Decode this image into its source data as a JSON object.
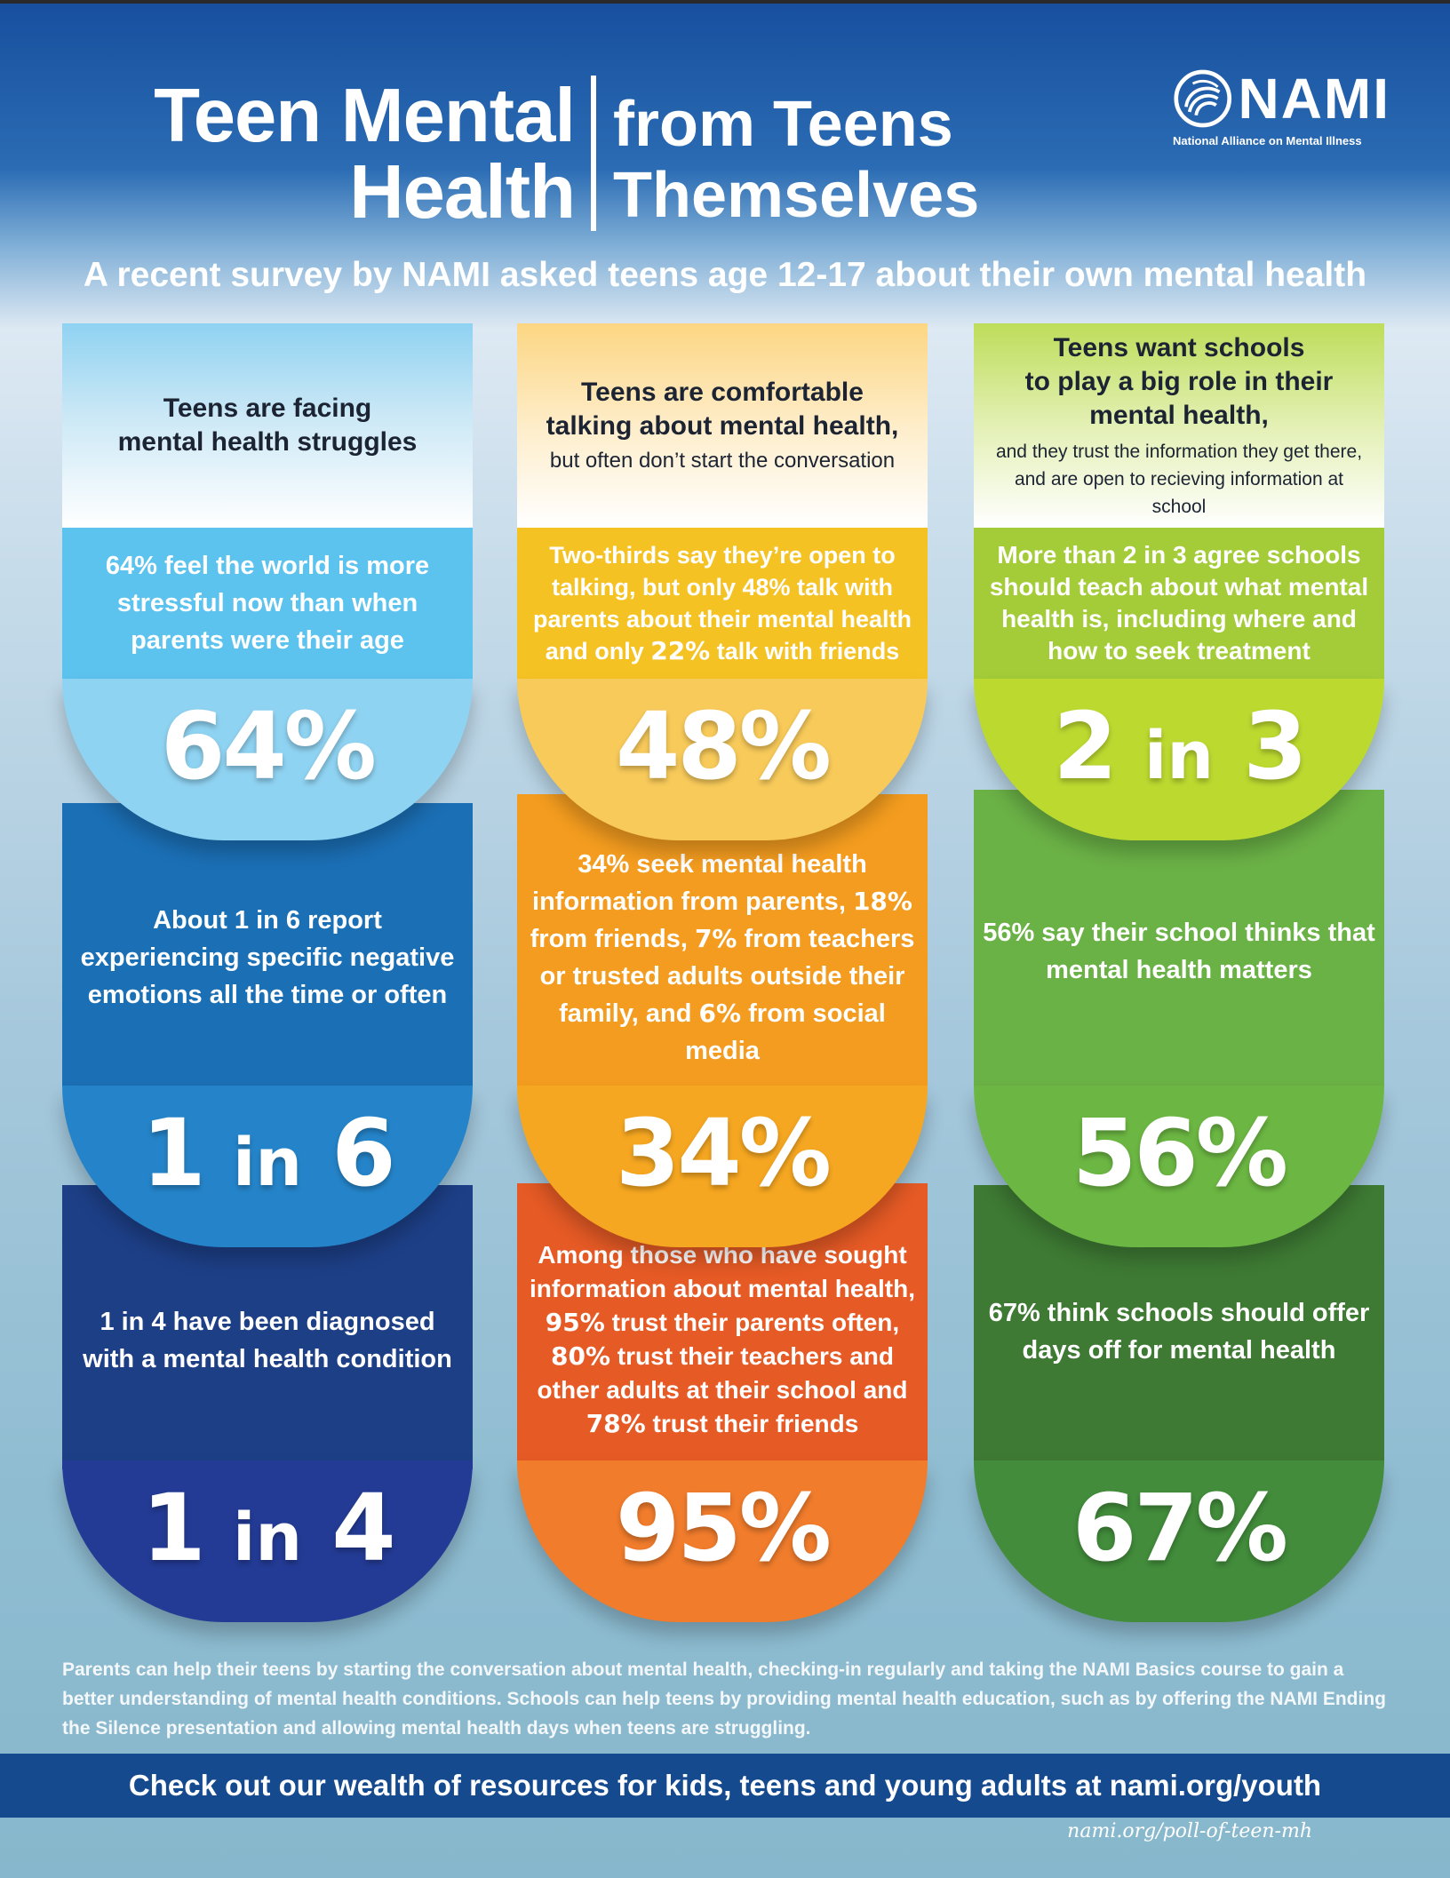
{
  "header": {
    "title_left_line1": "Teen Mental",
    "title_left_line2": "Health",
    "title_right_line1": "from Teens",
    "title_right_line2": "Themselves",
    "subtitle": "A recent survey by NAMI asked teens age 12-17 about their own mental health"
  },
  "logo": {
    "wordmark": "NAMI",
    "tagline": "National Alliance on Mental Illness"
  },
  "columns": [
    {
      "header": {
        "title_line1": "Teens are facing",
        "title_line2": "mental health struggles"
      },
      "stats": [
        {
          "text": "64% feel the world is more stressful now than when parents were their age",
          "value": "64%"
        },
        {
          "text": "About 1 in 6 report experiencing specific negative emotions all the time or often",
          "value_num": "1",
          "value_in": "in",
          "value_den": "6"
        },
        {
          "text": "1 in 4 have been diagnosed with a mental health condition",
          "value_num": "1",
          "value_in": "in",
          "value_den": "4"
        }
      ]
    },
    {
      "header": {
        "title_line1": "Teens are comfortable",
        "title_line2": "talking about mental health,",
        "subtitle": "but often don’t start the conversation"
      },
      "stats": [
        {
          "text_a": "Two-thirds say they’re open to talking, but only 48% talk  with parents about their mental health and only ",
          "hl_1": "22%",
          "text_b": " talk with friends",
          "value": "48%"
        },
        {
          "text_a": "34% seek mental health information from parents, ",
          "hl_1": "18%",
          "text_b": " from friends, ",
          "hl_2": "7%",
          "text_c": " from teachers or trusted adults outside their family, and ",
          "hl_3": "6%",
          "text_d": " from social media",
          "value": "34%"
        },
        {
          "text_a": "Among those who have sought information about mental health, ",
          "hl_1": "95%",
          "text_b": " trust their parents often, ",
          "hl_2": "80%",
          "text_c": " trust their teachers and other adults at their school and ",
          "hl_3": "78%",
          "text_d": " trust their friends",
          "value": "95%"
        }
      ]
    },
    {
      "header": {
        "title_line1": "Teens want schools",
        "title_line2": "to play a big role in their",
        "title_line3": "mental health,",
        "note": "and they trust the information they get there, and are open to recieving information at school"
      },
      "stats": [
        {
          "text": "More than 2 in 3 agree schools should teach about what mental health is, including where and how to seek treatment",
          "value_num": "2",
          "value_in": "in",
          "value_den": "3"
        },
        {
          "text": "56% say their school thinks that mental health matters",
          "value": "56%"
        },
        {
          "text": "67% think schools should offer days off for mental health",
          "value": "67%"
        }
      ]
    }
  ],
  "footer": {
    "note": "Parents can help their teens by starting the conversation about mental health, checking-in regularly and taking the NAMI Basics course to gain a better understanding of mental health conditions. Schools can help teens by providing mental health education, such as by offering the NAMI Ending the Silence presentation and allowing mental health days when teens are struggling.",
    "cta": "Check out our wealth of resources for kids, teens and young adults at nami.org/youth",
    "source": "nami.org/poll-of-teen-mh"
  },
  "colors": {
    "c1_head": "#dbeef8",
    "c1_s1": "#5cc2ee",
    "c1_b1": "#8fd3f2",
    "c1_s2": "#1b6fb5",
    "c1_b2": "#2584c9",
    "c1_s3": "#1d3f86",
    "c1_b3": "#233b95",
    "c2_head": "#fde9bd",
    "c2_s1": "#f5c224",
    "c2_b1": "#f8ca5a",
    "c2_s2": "#f39c1f",
    "c2_b2": "#f6a721",
    "c2_s3": "#e55a25",
    "c2_b3": "#f07c2c",
    "c3_head": "#d6e98a",
    "c3_s1": "#a3cc38",
    "c3_b1": "#bcd930",
    "c3_s2": "#6ab146",
    "c3_b2": "#6cb743",
    "c3_s3": "#3e7a34",
    "c3_b3": "#428c3b"
  }
}
